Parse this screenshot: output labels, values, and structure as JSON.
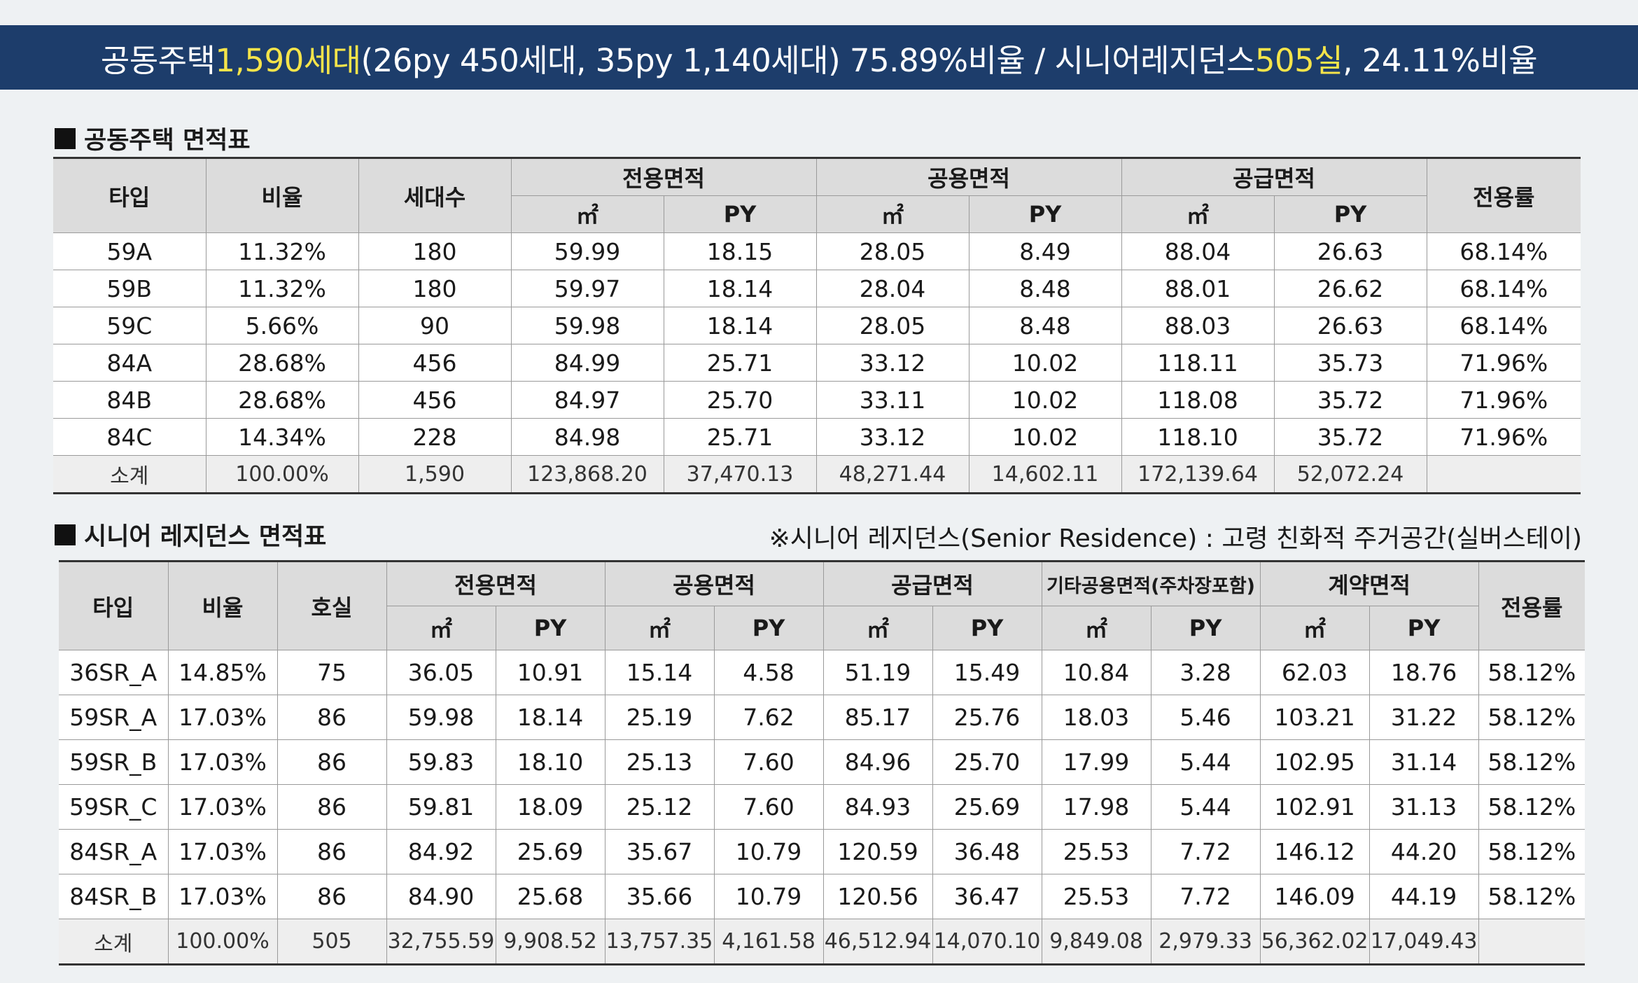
{
  "banner": {
    "part1": "공동주택 ",
    "highlight1": "1,590세대",
    "part2": "(26py 450세대, 35py 1,140세대) 75.89%비율 / 시니어레지던스 ",
    "highlight2": "505실",
    "part3": ", 24.11%비율",
    "background_color": "#1d3d6b",
    "highlight_color": "#f5e44a"
  },
  "table1": {
    "title": "공동주택 면적표",
    "headers": {
      "type": "타입",
      "ratio": "비율",
      "count": "세대수",
      "exclusive": "전용면적",
      "common": "공용면적",
      "supply": "공급면적",
      "exclusive_rate": "전용률",
      "sqm": "㎡",
      "py": "PY"
    },
    "rows": [
      [
        "59A",
        "11.32%",
        "180",
        "59.99",
        "18.15",
        "28.05",
        "8.49",
        "88.04",
        "26.63",
        "68.14%"
      ],
      [
        "59B",
        "11.32%",
        "180",
        "59.97",
        "18.14",
        "28.04",
        "8.48",
        "88.01",
        "26.62",
        "68.14%"
      ],
      [
        "59C",
        "5.66%",
        "90",
        "59.98",
        "18.14",
        "28.05",
        "8.48",
        "88.03",
        "26.63",
        "68.14%"
      ],
      [
        "84A",
        "28.68%",
        "456",
        "84.99",
        "25.71",
        "33.12",
        "10.02",
        "118.11",
        "35.73",
        "71.96%"
      ],
      [
        "84B",
        "28.68%",
        "456",
        "84.97",
        "25.70",
        "33.11",
        "10.02",
        "118.08",
        "35.72",
        "71.96%"
      ],
      [
        "84C",
        "14.34%",
        "228",
        "84.98",
        "25.71",
        "33.12",
        "10.02",
        "118.10",
        "35.72",
        "71.96%"
      ]
    ],
    "subtotal": [
      "소계",
      "100.00%",
      "1,590",
      "123,868.20",
      "37,470.13",
      "48,271.44",
      "14,602.11",
      "172,139.64",
      "52,072.24",
      ""
    ]
  },
  "table2": {
    "title": "시니어 레지던스 면적표",
    "note": "※시니어 레지던스(Senior Residence) : 고령 친화적 주거공간(실버스테이)",
    "headers": {
      "type": "타입",
      "ratio": "비율",
      "rooms": "호실",
      "exclusive": "전용면적",
      "common": "공용면적",
      "supply": "공급면적",
      "other_common": "기타공용면적(주차장포함)",
      "contract": "계약면적",
      "exclusive_rate": "전용률",
      "sqm": "㎡",
      "py": "PY"
    },
    "rows": [
      [
        "36SR_A",
        "14.85%",
        "75",
        "36.05",
        "10.91",
        "15.14",
        "4.58",
        "51.19",
        "15.49",
        "10.84",
        "3.28",
        "62.03",
        "18.76",
        "58.12%"
      ],
      [
        "59SR_A",
        "17.03%",
        "86",
        "59.98",
        "18.14",
        "25.19",
        "7.62",
        "85.17",
        "25.76",
        "18.03",
        "5.46",
        "103.21",
        "31.22",
        "58.12%"
      ],
      [
        "59SR_B",
        "17.03%",
        "86",
        "59.83",
        "18.10",
        "25.13",
        "7.60",
        "84.96",
        "25.70",
        "17.99",
        "5.44",
        "102.95",
        "31.14",
        "58.12%"
      ],
      [
        "59SR_C",
        "17.03%",
        "86",
        "59.81",
        "18.09",
        "25.12",
        "7.60",
        "84.93",
        "25.69",
        "17.98",
        "5.44",
        "102.91",
        "31.13",
        "58.12%"
      ],
      [
        "84SR_A",
        "17.03%",
        "86",
        "84.92",
        "25.69",
        "35.67",
        "10.79",
        "120.59",
        "36.48",
        "25.53",
        "7.72",
        "146.12",
        "44.20",
        "58.12%"
      ],
      [
        "84SR_B",
        "17.03%",
        "86",
        "84.90",
        "25.68",
        "35.66",
        "10.79",
        "120.56",
        "36.47",
        "25.53",
        "7.72",
        "146.09",
        "44.19",
        "58.12%"
      ]
    ],
    "subtotal": [
      "소계",
      "100.00%",
      "505",
      "32,755.59",
      "9,908.52",
      "13,757.35",
      "4,161.58",
      "46,512.94",
      "14,070.10",
      "9,849.08",
      "2,979.33",
      "56,362.02",
      "17,049.43",
      ""
    ]
  }
}
